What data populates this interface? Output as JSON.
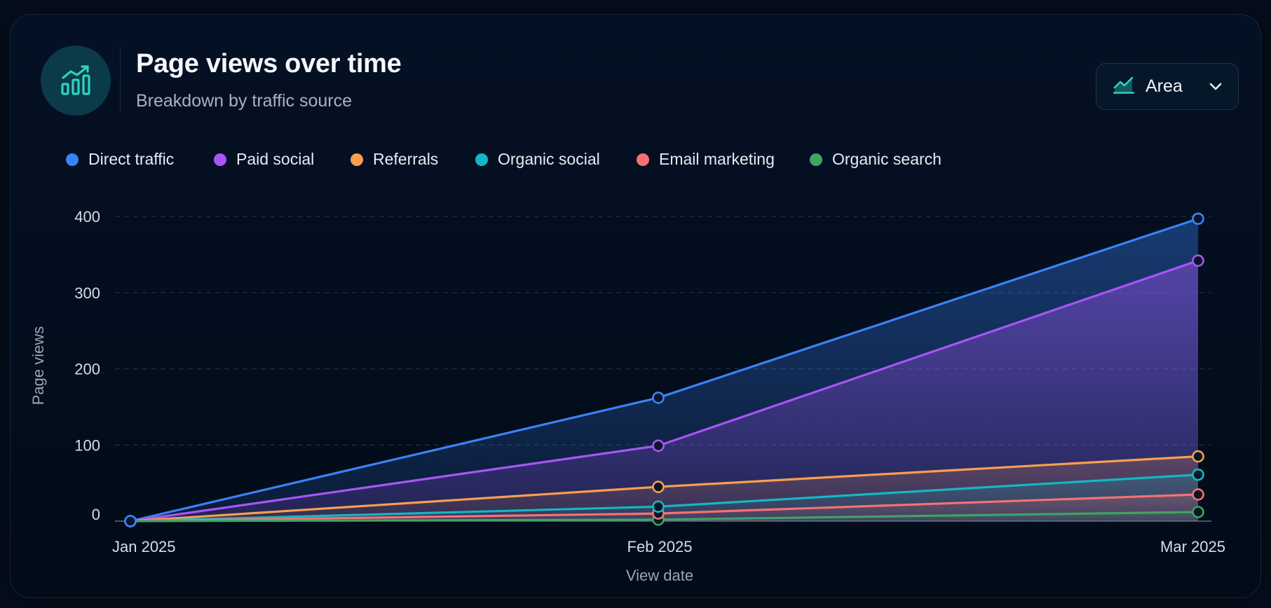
{
  "header": {
    "title": "Page views over time",
    "subtitle": "Breakdown by traffic source",
    "icon": "trending-chart-icon"
  },
  "chart_type_select": {
    "label": "Area",
    "icon": "area-chart-icon"
  },
  "colors": {
    "accent": "#2dd4bf",
    "axis": "#5d6b7d",
    "grid": "#1d3048"
  },
  "chart_data": {
    "type": "area",
    "title": "Page views over time",
    "subtitle": "Breakdown by traffic source",
    "xlabel": "View date",
    "ylabel": "Page views",
    "x": [
      "Jan 2025",
      "Feb 2025",
      "Mar 2025"
    ],
    "ylim": [
      0,
      400
    ],
    "yticks": [
      0,
      100,
      200,
      300,
      400
    ],
    "grid": true,
    "legend_position": "top-left",
    "series": [
      {
        "name": "Direct traffic",
        "color": "#3b82f6",
        "values": [
          0,
          162,
          397
        ]
      },
      {
        "name": "Paid social",
        "color": "#a855f7",
        "values": [
          0,
          99,
          342
        ]
      },
      {
        "name": "Referrals",
        "color": "#fb9e4f",
        "values": [
          0,
          45,
          85
        ]
      },
      {
        "name": "Organic social",
        "color": "#14b8c4",
        "values": [
          0,
          19,
          61
        ]
      },
      {
        "name": "Email marketing",
        "color": "#f87171",
        "values": [
          0,
          10,
          35
        ]
      },
      {
        "name": "Organic search",
        "color": "#3fa366",
        "values": [
          0,
          2,
          12
        ]
      }
    ]
  }
}
